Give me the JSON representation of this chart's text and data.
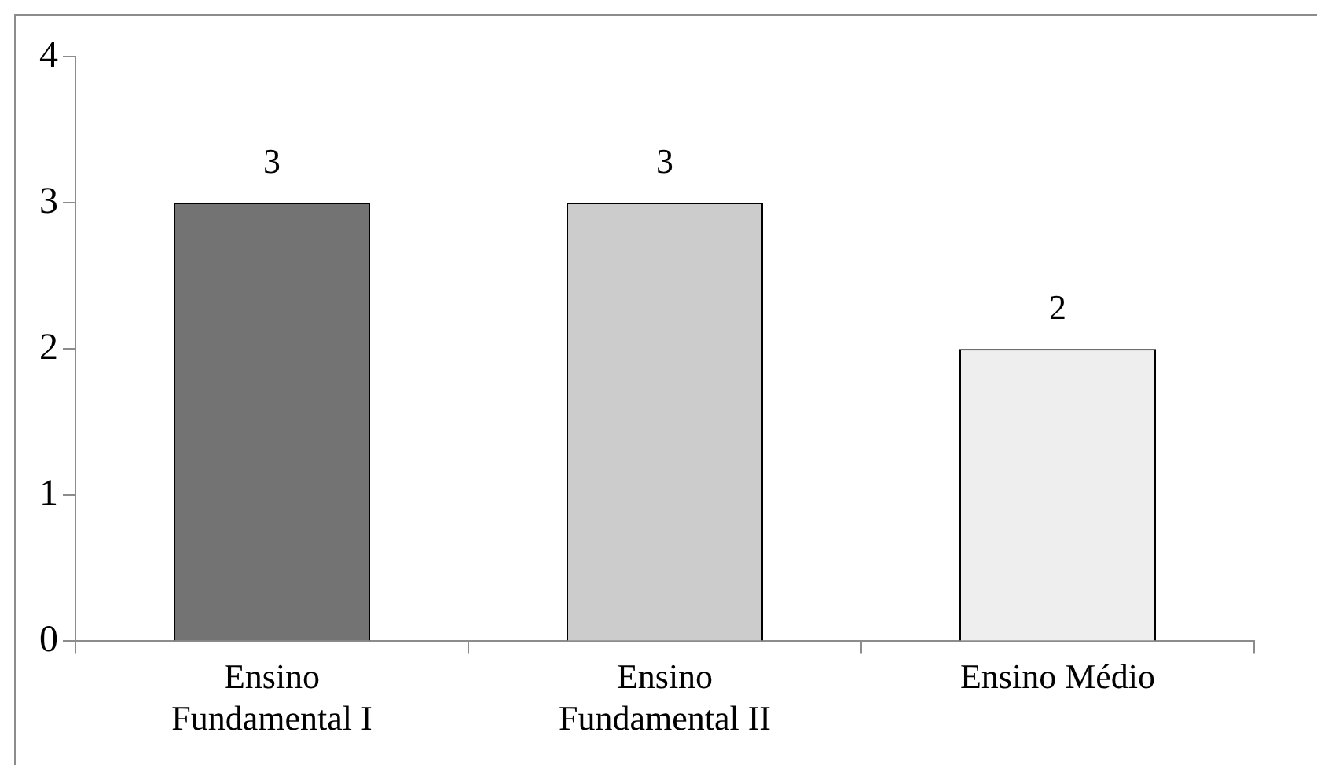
{
  "chart_data": {
    "type": "bar",
    "categories": [
      "Ensino Fundamental I",
      "Ensino Fundamental II",
      "Ensino Médio"
    ],
    "values": [
      3,
      3,
      2
    ],
    "colors": [
      "#737373",
      "#cccccc",
      "#eeeeee"
    ],
    "ylim": [
      0,
      4
    ],
    "yticks": [
      0,
      1,
      2,
      3,
      4
    ],
    "grid": false,
    "legend": false,
    "data_labels": true
  }
}
